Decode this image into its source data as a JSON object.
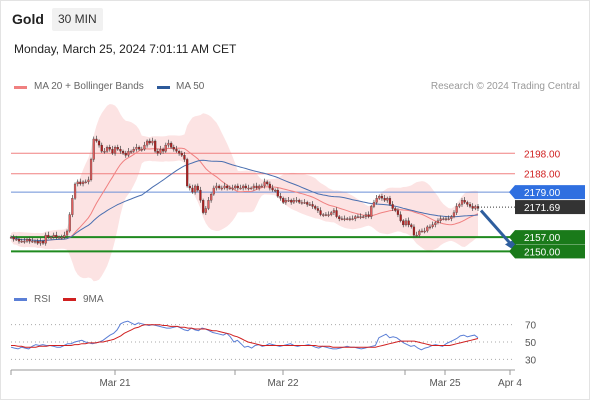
{
  "header": {
    "instrument": "Gold",
    "timeframe": "30 MIN",
    "datetime": "Monday, March 25, 2024 7:01:11 AM CET",
    "credit": "Research © 2024 Trading Central"
  },
  "legend": {
    "bb_label": "MA 20 + Bollinger Bands",
    "bb_color": "#f08080",
    "ma50_label": "MA 50",
    "ma50_color": "#2d5a9a"
  },
  "colors": {
    "up": "#e05d5d",
    "down": "#b02020",
    "resistance": "#f08080",
    "pivot": "#6a8fd6",
    "support": "#1f8a1f",
    "current": "#333333",
    "arrow": "#2e5e9e",
    "rsi": "#5b7fd6",
    "rsi_ma": "#d02020"
  },
  "chart_data": [
    {
      "type": "candlestick",
      "title": "Gold",
      "timeframe": "30 MIN",
      "x_ticks": [
        "Mar 21",
        "Mar 22",
        "Mar 25",
        "Apr 4"
      ],
      "ylim": [
        2137,
        2227
      ],
      "y_labels": [
        "2198.00",
        "2188.00",
        "2179.00",
        "2171.69",
        "2157.00",
        "2150.00"
      ],
      "levels": [
        {
          "label": "2198.00",
          "value": 2198,
          "kind": "resistance"
        },
        {
          "label": "2188.00",
          "value": 2188,
          "kind": "resistance"
        },
        {
          "label": "2179.00",
          "value": 2179,
          "kind": "pivot"
        },
        {
          "label": "2157.00",
          "value": 2157,
          "kind": "support"
        },
        {
          "label": "2150.00",
          "value": 2150,
          "kind": "support"
        }
      ],
      "current_price": {
        "label": "2171.69",
        "value": 2171.69
      },
      "forecast_arrow": {
        "from": 2171,
        "to": 2150
      },
      "series": [
        {
          "name": "MA 20 + Bollinger Bands"
        },
        {
          "name": "MA 50"
        }
      ],
      "ohlc_close": [
        2157,
        2156,
        2156,
        2155,
        2155,
        2155,
        2156,
        2155,
        2155,
        2155,
        2154,
        2155,
        2154,
        2158,
        2157,
        2157,
        2158,
        2157,
        2157,
        2157,
        2158,
        2160,
        2168,
        2176,
        2183,
        2184,
        2183,
        2184,
        2184,
        2185,
        2195,
        2205,
        2204,
        2202,
        2199,
        2199,
        2201,
        2200,
        2198,
        2201,
        2200,
        2199,
        2198,
        2197,
        2199,
        2199,
        2200,
        2201,
        2200,
        2200,
        2202,
        2204,
        2203,
        2204,
        2199,
        2198,
        2200,
        2199,
        2202,
        2203,
        2201,
        2200,
        2199,
        2198,
        2197,
        2195,
        2182,
        2181,
        2179,
        2182,
        2180,
        2175,
        2169,
        2171,
        2175,
        2178,
        2181,
        2182,
        2181,
        2181,
        2182,
        2181,
        2181,
        2181,
        2182,
        2181,
        2181,
        2182,
        2181,
        2181,
        2181,
        2182,
        2181,
        2182,
        2182,
        2184,
        2183,
        2181,
        2180,
        2180,
        2177,
        2176,
        2174,
        2175,
        2175,
        2174,
        2175,
        2175,
        2174,
        2174,
        2174,
        2173,
        2173,
        2172,
        2171,
        2170,
        2168,
        2168,
        2168,
        2168,
        2169,
        2170,
        2167,
        2166,
        2166,
        2166,
        2166,
        2166,
        2166,
        2167,
        2167,
        2167,
        2167,
        2168,
        2167,
        2172,
        2174,
        2176,
        2177,
        2176,
        2175,
        2176,
        2173,
        2171,
        2170,
        2168,
        2165,
        2163,
        2165,
        2163,
        2162,
        2158,
        2158,
        2160,
        2160,
        2160,
        2162,
        2162,
        2163,
        2164,
        2165,
        2166,
        2166,
        2166,
        2166,
        2167,
        2169,
        2172,
        2173,
        2175,
        2174,
        2173,
        2172,
        2171,
        2172,
        2171
      ]
    },
    {
      "type": "line",
      "title": "RSI",
      "x_ticks": [
        "Mar 21",
        "Mar 22",
        "Mar 25",
        "Apr 4"
      ],
      "ylim": [
        20,
        80
      ],
      "y_ticks": [
        70,
        50,
        30
      ],
      "series": [
        {
          "name": "RSI",
          "values": [
            44,
            43,
            42,
            44,
            43,
            42,
            45,
            47,
            46,
            47,
            46,
            46,
            45,
            44,
            44,
            46,
            48,
            48,
            50,
            51,
            52,
            50,
            49,
            48,
            49,
            50,
            52,
            55,
            58,
            60,
            64,
            71,
            73,
            74,
            72,
            70,
            72,
            71,
            70,
            69,
            70,
            69,
            68,
            67,
            66,
            66,
            67,
            68,
            66,
            64,
            63,
            66,
            64,
            63,
            66,
            65,
            63,
            61,
            60,
            59,
            58,
            60,
            56,
            50,
            52,
            48,
            44,
            45,
            43,
            46,
            47,
            45,
            46,
            48,
            47,
            46,
            45,
            46,
            47,
            48,
            46,
            45,
            46,
            46,
            47,
            46,
            44,
            43,
            45,
            44,
            43,
            42,
            42,
            43,
            44,
            45,
            44,
            44,
            43,
            42,
            43,
            44,
            45,
            46,
            55,
            57,
            59,
            55,
            56,
            55,
            52,
            49,
            47,
            45,
            46,
            43,
            41,
            43,
            44,
            46,
            47,
            46,
            45,
            48,
            50,
            52,
            54,
            57,
            58,
            56,
            57,
            58,
            55
          ]
        },
        {
          "name": "9MA",
          "values": [
            46,
            46,
            45,
            45,
            44,
            44,
            44,
            44,
            45,
            45,
            45,
            46,
            46,
            46,
            46,
            46,
            46,
            46,
            47,
            47,
            48,
            48,
            49,
            49,
            49,
            50,
            50,
            51,
            52,
            53,
            55,
            57,
            60,
            62,
            64,
            66,
            67,
            69,
            70,
            70,
            70,
            70,
            70,
            69,
            69,
            68,
            68,
            68,
            67,
            67,
            66,
            66,
            65,
            65,
            65,
            65,
            64,
            63,
            63,
            62,
            61,
            60,
            59,
            57,
            56,
            54,
            52,
            50,
            49,
            48,
            47,
            46,
            46,
            46,
            46,
            46,
            46,
            46,
            46,
            46,
            46,
            46,
            46,
            46,
            46,
            46,
            46,
            45,
            45,
            45,
            45,
            44,
            44,
            44,
            44,
            44,
            44,
            44,
            44,
            44,
            44,
            44,
            44,
            44,
            45,
            46,
            47,
            48,
            49,
            50,
            51,
            51,
            51,
            51,
            51,
            50,
            49,
            48,
            47,
            46,
            46,
            46,
            46,
            46,
            46,
            47,
            48,
            49,
            50,
            51,
            52,
            53,
            54
          ]
        }
      ]
    }
  ]
}
